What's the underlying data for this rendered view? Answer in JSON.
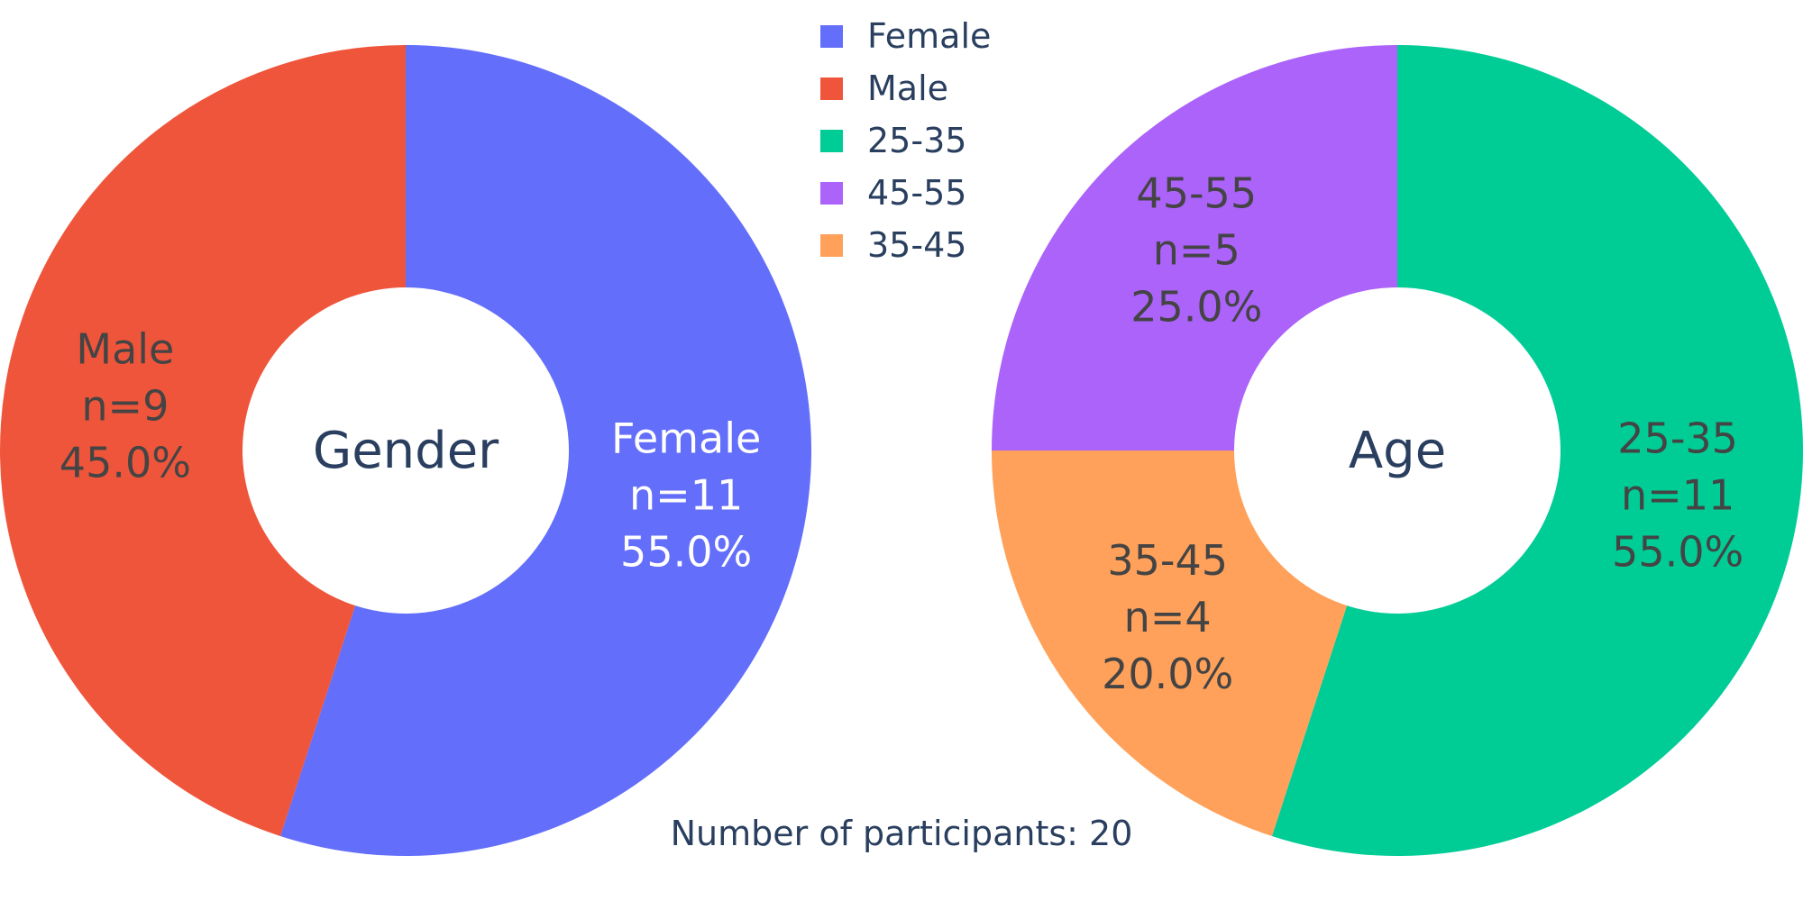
{
  "chart_data": [
    {
      "type": "pie",
      "hole": true,
      "title": "Gender",
      "slices": [
        {
          "label": "Female",
          "value": 11,
          "percent": "55.0%",
          "count_text": "n=11",
          "color": "#636efa",
          "text_color": "#ffffff"
        },
        {
          "label": "Male",
          "value": 9,
          "percent": "45.0%",
          "count_text": "n=9",
          "color": "#ef553b",
          "text_color": "#444444"
        }
      ]
    },
    {
      "type": "pie",
      "hole": true,
      "title": "Age",
      "slices": [
        {
          "label": "25-35",
          "value": 11,
          "percent": "55.0%",
          "count_text": "n=11",
          "color": "#00cc96",
          "text_color": "#444444"
        },
        {
          "label": "35-45",
          "value": 4,
          "percent": "20.0%",
          "count_text": "n=4",
          "color": "#ffa15a",
          "text_color": "#444444"
        },
        {
          "label": "45-55",
          "value": 5,
          "percent": "25.0%",
          "count_text": "n=5",
          "color": "#ab63fa",
          "text_color": "#444444"
        }
      ]
    }
  ],
  "legend": {
    "placement": "top-center",
    "items": [
      {
        "label": "Female",
        "color": "#636efa"
      },
      {
        "label": "Male",
        "color": "#ef553b"
      },
      {
        "label": "25-35",
        "color": "#00cc96"
      },
      {
        "label": "45-55",
        "color": "#ab63fa"
      },
      {
        "label": "35-45",
        "color": "#ffa15a"
      }
    ]
  },
  "annotation": "Number of participants: 20"
}
